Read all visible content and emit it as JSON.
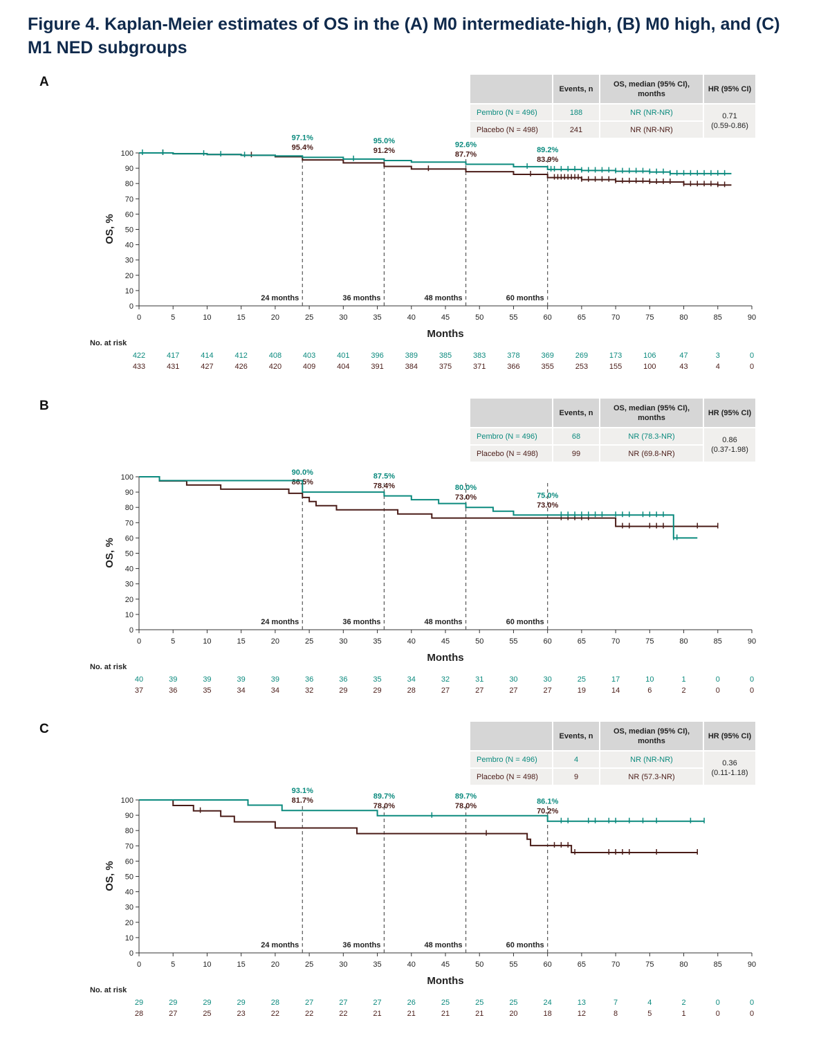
{
  "figure": {
    "title": "Figure 4. Kaplan-Meier estimates of OS in the (A) M0 intermediate-high, (B) M0 high, and (C) M1 NED subgroups"
  },
  "colors": {
    "pembro": "#0b8a7e",
    "placebo": "#4a1c18",
    "dashed": "#555555"
  },
  "table_headers": {
    "events": "Events, n",
    "median": "OS, median (95% CI), months",
    "hr": "HR (95% CI)"
  },
  "risk_label": "No. at risk",
  "chart_data": [
    {
      "type": "line",
      "panel": "A",
      "xlabel": "Months",
      "ylabel": "OS, %",
      "xlim": [
        0,
        90
      ],
      "ylim": [
        0,
        100
      ],
      "xticks": [
        0,
        5,
        10,
        15,
        20,
        25,
        30,
        35,
        40,
        45,
        50,
        55,
        60,
        65,
        70,
        75,
        80,
        85,
        90
      ],
      "yticks": [
        0,
        10,
        20,
        30,
        40,
        50,
        60,
        70,
        80,
        90,
        100
      ],
      "landmarks": [
        {
          "x": 24,
          "label": "24 months",
          "pembro": "97.1%",
          "placebo": "95.4%"
        },
        {
          "x": 36,
          "label": "36 months",
          "pembro": "95.0%",
          "placebo": "91.2%"
        },
        {
          "x": 48,
          "label": "48 months",
          "pembro": "92.6%",
          "placebo": "87.7%"
        },
        {
          "x": 60,
          "label": "60 months",
          "pembro": "89.2%",
          "placebo": "83.9%"
        }
      ],
      "summary": [
        {
          "arm": "Pembro (N = 496)",
          "events": "188",
          "median": "NR (NR-NR)"
        },
        {
          "arm": "Placebo (N = 498)",
          "events": "241",
          "median": "NR (NR-NR)"
        }
      ],
      "hr": [
        "0.71",
        "(0.59-0.86)"
      ],
      "series": [
        {
          "name": "Pembro",
          "x": [
            0,
            5,
            10,
            15,
            20,
            24,
            30,
            36,
            40,
            48,
            55,
            60,
            65,
            70,
            75,
            78,
            80,
            85,
            87
          ],
          "y": [
            100,
            99.5,
            99,
            98.5,
            98,
            97.1,
            96,
            95,
            94,
            92.6,
            91,
            89.2,
            88.5,
            88,
            87.5,
            86.5,
            86.5,
            86.5,
            86.5
          ],
          "censor": [
            0.5,
            3.5,
            9.5,
            12,
            15.5,
            31.5,
            57,
            60.5,
            61,
            62,
            63,
            64,
            65,
            66,
            67,
            68,
            69,
            70,
            71,
            72,
            73,
            74,
            75,
            76,
            77,
            78,
            79,
            80,
            81,
            82,
            83,
            84,
            85,
            86
          ]
        },
        {
          "name": "Placebo",
          "x": [
            0,
            5,
            10,
            15,
            20,
            24,
            30,
            36,
            40,
            48,
            55,
            60,
            65,
            70,
            75,
            80,
            85,
            87
          ],
          "y": [
            100,
            99.5,
            99,
            98.5,
            97.5,
            95.4,
            93.5,
            91.2,
            89.5,
            87.7,
            86,
            83.9,
            82.5,
            81.5,
            81,
            79.5,
            79,
            79
          ],
          "censor": [
            3.5,
            16.5,
            42.5,
            57.5,
            61,
            61.5,
            62,
            62.5,
            63,
            63.5,
            64,
            64.5,
            65,
            66,
            67,
            68,
            69,
            70,
            71,
            72,
            73,
            74,
            75,
            76,
            77,
            78,
            80,
            81,
            82,
            83,
            84,
            85,
            86
          ]
        }
      ],
      "at_risk": {
        "pembro": [
          "422",
          "417",
          "414",
          "412",
          "408",
          "403",
          "401",
          "396",
          "389",
          "385",
          "383",
          "378",
          "369",
          "269",
          "173",
          "106",
          "47",
          "3",
          "0"
        ],
        "placebo": [
          "433",
          "431",
          "427",
          "426",
          "420",
          "409",
          "404",
          "391",
          "384",
          "375",
          "371",
          "366",
          "355",
          "253",
          "155",
          "100",
          "43",
          "4",
          "0"
        ]
      }
    },
    {
      "type": "line",
      "panel": "B",
      "xlabel": "Months",
      "ylabel": "OS, %",
      "xlim": [
        0,
        90
      ],
      "ylim": [
        0,
        100
      ],
      "xticks": [
        0,
        5,
        10,
        15,
        20,
        25,
        30,
        35,
        40,
        45,
        50,
        55,
        60,
        65,
        70,
        75,
        80,
        85,
        90
      ],
      "yticks": [
        0,
        10,
        20,
        30,
        40,
        50,
        60,
        70,
        80,
        90,
        100
      ],
      "landmarks": [
        {
          "x": 24,
          "label": "24 months",
          "pembro": "90.0%",
          "placebo": "86.5%"
        },
        {
          "x": 36,
          "label": "36 months",
          "pembro": "87.5%",
          "placebo": "78.4%"
        },
        {
          "x": 48,
          "label": "48 months",
          "pembro": "80.0%",
          "placebo": "73.0%"
        },
        {
          "x": 60,
          "label": "60 months",
          "pembro": "75.0%",
          "placebo": "73.0%"
        }
      ],
      "summary": [
        {
          "arm": "Pembro (N = 496)",
          "events": "68",
          "median": "NR (78.3-NR)"
        },
        {
          "arm": "Placebo (N = 498)",
          "events": "99",
          "median": "NR (69.8-NR)"
        }
      ],
      "hr": [
        "0.86",
        "(0.37-1.98)"
      ],
      "series": [
        {
          "name": "Pembro",
          "x": [
            0,
            3,
            20,
            24,
            30,
            36,
            40,
            44,
            48,
            52,
            55,
            60,
            70,
            78,
            78.5,
            82
          ],
          "y": [
            100,
            97.5,
            97.5,
            90,
            90,
            87.5,
            85,
            82.5,
            80,
            77.5,
            75,
            75,
            75,
            75,
            60,
            60
          ],
          "censor": [
            62,
            63,
            64,
            65,
            66,
            67,
            68,
            70,
            71,
            72,
            74,
            75,
            76,
            77,
            78.5,
            79
          ]
        },
        {
          "name": "Placebo",
          "x": [
            0,
            3,
            4,
            7,
            12,
            20,
            22,
            24,
            25,
            26,
            29,
            38,
            43,
            48,
            60,
            70,
            85
          ],
          "y": [
            100,
            97.3,
            97.3,
            94.6,
            91.9,
            91.9,
            89.2,
            86.5,
            83.8,
            81.1,
            78.4,
            75.7,
            73,
            73,
            73,
            67.6,
            67.6
          ],
          "censor": [
            62,
            63,
            64,
            65,
            66,
            71,
            72,
            75,
            76,
            77,
            82,
            85
          ]
        }
      ],
      "at_risk": {
        "pembro": [
          "40",
          "39",
          "39",
          "39",
          "39",
          "36",
          "36",
          "35",
          "34",
          "32",
          "31",
          "30",
          "30",
          "25",
          "17",
          "10",
          "1",
          "0",
          "0"
        ],
        "placebo": [
          "37",
          "36",
          "35",
          "34",
          "34",
          "32",
          "29",
          "29",
          "28",
          "27",
          "27",
          "27",
          "27",
          "19",
          "14",
          "6",
          "2",
          "0",
          "0"
        ]
      }
    },
    {
      "type": "line",
      "panel": "C",
      "xlabel": "Months",
      "ylabel": "OS, %",
      "xlim": [
        0,
        90
      ],
      "ylim": [
        0,
        100
      ],
      "xticks": [
        0,
        5,
        10,
        15,
        20,
        25,
        30,
        35,
        40,
        45,
        50,
        55,
        60,
        65,
        70,
        75,
        80,
        85,
        90
      ],
      "yticks": [
        0,
        10,
        20,
        30,
        40,
        50,
        60,
        70,
        80,
        90,
        100
      ],
      "landmarks": [
        {
          "x": 24,
          "label": "24 months",
          "pembro": "93.1%",
          "placebo": "81.7%"
        },
        {
          "x": 36,
          "label": "36 months",
          "pembro": "89.7%",
          "placebo": "78.0%"
        },
        {
          "x": 48,
          "label": "48 months",
          "pembro": "89.7%",
          "placebo": "78.0%"
        },
        {
          "x": 60,
          "label": "60 months",
          "pembro": "86.1%",
          "placebo": "70.2%"
        }
      ],
      "summary": [
        {
          "arm": "Pembro (N = 496)",
          "events": "4",
          "median": "NR (NR-NR)"
        },
        {
          "arm": "Placebo (N = 498)",
          "events": "9",
          "median": "NR (57.3-NR)"
        }
      ],
      "hr": [
        "0.36",
        "(0.11-1.18)"
      ],
      "series": [
        {
          "name": "Pembro",
          "x": [
            0,
            16,
            21,
            35,
            60,
            83
          ],
          "y": [
            100,
            96.6,
            93.1,
            89.7,
            86.1,
            86.1
          ],
          "censor": [
            43,
            62,
            63,
            66,
            67,
            69,
            70,
            72,
            74,
            76,
            81,
            83
          ]
        },
        {
          "name": "Placebo",
          "x": [
            0,
            5,
            8,
            12,
            14,
            20,
            32,
            57,
            57.5,
            63.5,
            82
          ],
          "y": [
            100,
            96.4,
            92.9,
            89.3,
            85.7,
            81.7,
            78,
            74.3,
            70.2,
            65.6,
            65.6
          ],
          "censor": [
            9,
            51,
            61,
            62,
            63,
            64,
            69,
            70,
            71,
            72,
            76,
            82
          ]
        }
      ],
      "at_risk": {
        "pembro": [
          "29",
          "29",
          "29",
          "29",
          "28",
          "27",
          "27",
          "27",
          "26",
          "25",
          "25",
          "25",
          "24",
          "13",
          "7",
          "4",
          "2",
          "0",
          "0"
        ],
        "placebo": [
          "28",
          "27",
          "25",
          "23",
          "22",
          "22",
          "22",
          "21",
          "21",
          "21",
          "21",
          "20",
          "18",
          "12",
          "8",
          "5",
          "1",
          "0",
          "0"
        ]
      }
    }
  ]
}
